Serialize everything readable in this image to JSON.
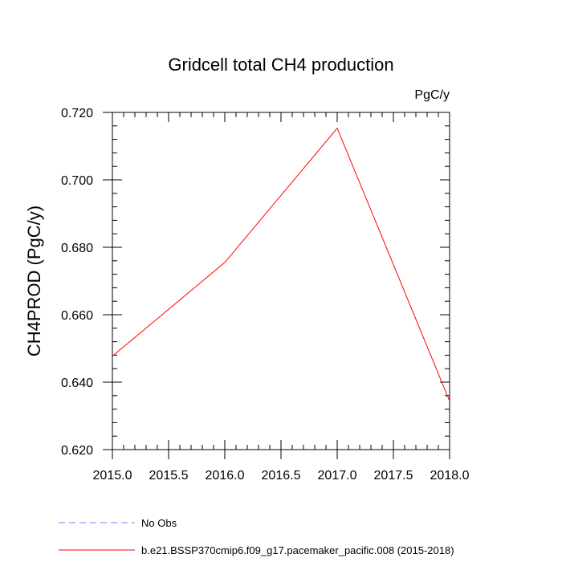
{
  "chart_data": {
    "type": "line",
    "title": "Gridcell total CH4 production",
    "units": "PgC/y",
    "ylabel": "CH4PROD  (PgC/y)",
    "xlabel": "",
    "xlim": [
      2015.0,
      2018.0
    ],
    "ylim": [
      0.62,
      0.72
    ],
    "x_ticks": [
      2015.0,
      2015.5,
      2016.0,
      2016.5,
      2017.0,
      2017.5,
      2018.0
    ],
    "x_tick_labels": [
      "2015.0",
      "2015.5",
      "2016.0",
      "2016.5",
      "2017.0",
      "2017.5",
      "2018.0"
    ],
    "y_ticks": [
      0.62,
      0.64,
      0.66,
      0.68,
      0.7,
      0.72
    ],
    "y_tick_labels": [
      "0.620",
      "0.640",
      "0.660",
      "0.680",
      "0.700",
      "0.720"
    ],
    "grid": false,
    "legend_position": "bottom",
    "series": [
      {
        "name": "No Obs",
        "color": "#7f7fff",
        "style": "dashed",
        "x": [],
        "y": []
      },
      {
        "name": "b.e21.BSSP370cmip6.f09_g17.pacemaker_pacific.008 (2015-2018)",
        "color": "#ff0000",
        "style": "solid",
        "x": [
          2015.0,
          2016.0,
          2017.0,
          2018.0
        ],
        "y": [
          0.6477,
          0.6755,
          0.7153,
          0.6344
        ]
      }
    ]
  }
}
